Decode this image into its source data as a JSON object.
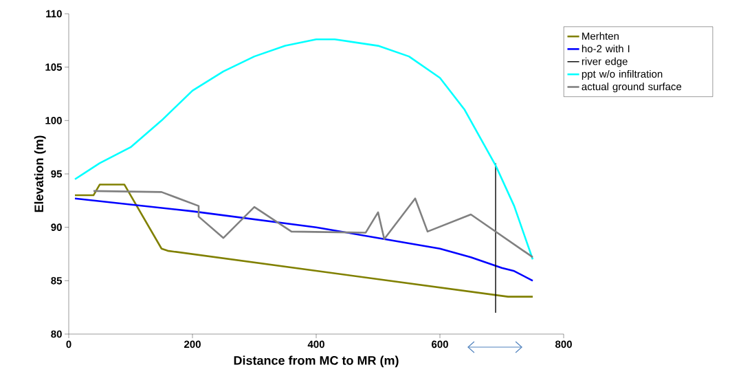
{
  "chart_data": {
    "type": "line",
    "xlabel": "Distance from MC to MR (m)",
    "ylabel": "Elevation (m)",
    "xlim": [
      0,
      800
    ],
    "ylim": [
      80,
      110
    ],
    "xticks": [
      0,
      200,
      400,
      600,
      800
    ],
    "yticks": [
      80,
      85,
      90,
      95,
      100,
      105,
      110
    ],
    "legend": "top right",
    "series": [
      {
        "name": "Merhten",
        "color": "#808000",
        "x": [
          10,
          40,
          50,
          90,
          150,
          160,
          710,
          750
        ],
        "values": [
          93,
          93,
          94,
          94,
          88,
          87.8,
          83.5,
          83.5
        ]
      },
      {
        "name": "ho-2 with I",
        "color": "#0000ff",
        "x": [
          10,
          200,
          400,
          500,
          600,
          650,
          700,
          720,
          750
        ],
        "values": [
          92.7,
          91.5,
          90,
          89,
          88,
          87.2,
          86.2,
          85.9,
          85
        ]
      },
      {
        "name": "river edge",
        "color": "#000000",
        "x": [
          690,
          690
        ],
        "values": [
          82,
          96
        ]
      },
      {
        "name": "ppt w/o infiltration",
        "color": "#00ffff",
        "x": [
          10,
          50,
          100,
          150,
          200,
          250,
          300,
          350,
          400,
          430,
          500,
          550,
          600,
          640,
          690,
          720,
          750
        ],
        "values": [
          94.5,
          96,
          97.5,
          100,
          102.8,
          104.6,
          106,
          107,
          107.6,
          107.6,
          107,
          106,
          104,
          101,
          95.8,
          92,
          87
        ]
      },
      {
        "name": "actual ground surface",
        "color": "#808080",
        "x": [
          40,
          150,
          210,
          210,
          250,
          300,
          360,
          480,
          500,
          510,
          560,
          580,
          650,
          750
        ],
        "values": [
          93.4,
          93.3,
          92,
          91,
          89,
          91.9,
          89.6,
          89.5,
          91.4,
          88.9,
          92.7,
          89.6,
          91.2,
          87.2
        ]
      }
    ]
  }
}
